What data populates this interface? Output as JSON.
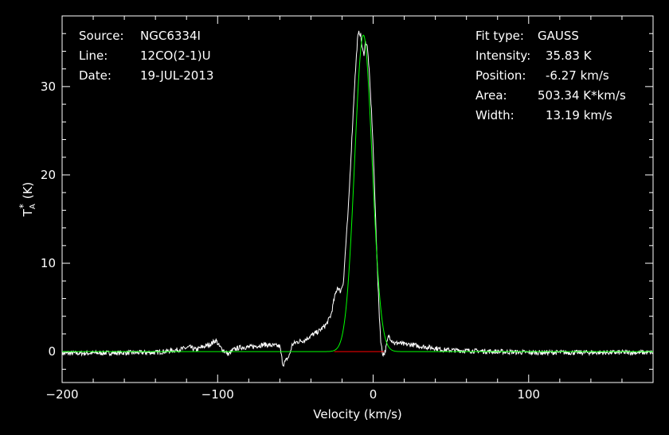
{
  "header_left": {
    "source_label": "Source:",
    "source_value": "NGC6334I",
    "line_label": "Line:",
    "line_value": "12CO(2-1)U",
    "date_label": "Date:",
    "date_value": "19-JUL-2013"
  },
  "fit": {
    "type_label": "Fit type:",
    "type_value": "GAUSS",
    "intensity_label": "Intensity:",
    "intensity_value": "35.83 K",
    "position_label": "Position:",
    "position_value": "-6.27 km/s",
    "area_label": "Area:",
    "area_value": "503.34 K*km/s",
    "width_label": "Width:",
    "width_value": "13.19 km/s"
  },
  "chart_data": {
    "type": "line",
    "xlabel": "Velocity (km/s)",
    "ylabel_main": "T",
    "ylabel_sub": "A",
    "ylabel_sup": "*",
    "ylabel_unit": "(K)",
    "xlim": [
      -200,
      180
    ],
    "ylim": [
      -3.5,
      38
    ],
    "xticks": [
      -200,
      -100,
      0,
      100
    ],
    "xtick_labels": [
      "-200",
      "-100",
      "0",
      "100"
    ],
    "yticks": [
      0,
      10,
      20,
      30
    ],
    "ytick_labels": [
      "0",
      "10",
      "20",
      "30"
    ],
    "series": [
      {
        "role": "spectrum",
        "color": "#ffffff",
        "x": [
          -200,
          -140,
          -125,
          -118,
          -114,
          -110,
          -105,
          -101,
          -99,
          -96,
          -93,
          -90,
          -87,
          -84,
          -80,
          -76,
          -70,
          -65,
          -60,
          -58,
          -56,
          -54,
          -52,
          -49,
          -44,
          -40,
          -35,
          -30,
          -27,
          -25,
          -23,
          -21,
          -19,
          -18,
          -16,
          -14,
          -12,
          -10,
          -9,
          -8,
          -7,
          -6,
          -5,
          -4,
          -3,
          -2,
          -1,
          0,
          1,
          2,
          3,
          4,
          5,
          6,
          7,
          8,
          9,
          10,
          12,
          14,
          16,
          20,
          25,
          30,
          40,
          45,
          60,
          80,
          100,
          130,
          180
        ],
        "values": [
          -0.2,
          -0.1,
          0.2,
          0.5,
          0.2,
          0.5,
          0.8,
          1.3,
          0.6,
          0.1,
          -0.3,
          0.2,
          0.4,
          0.5,
          0.5,
          0.6,
          0.8,
          0.7,
          0.6,
          -1.5,
          -1.0,
          -0.5,
          0.8,
          1.1,
          1.3,
          1.8,
          2.3,
          3.1,
          4.2,
          6.0,
          7.3,
          6.8,
          8.0,
          11.0,
          16.0,
          23.0,
          30.0,
          35.5,
          36.2,
          35.8,
          34.3,
          33.6,
          35.0,
          34.8,
          33.0,
          30.0,
          27.0,
          23.0,
          18.0,
          13.0,
          8.0,
          4.0,
          1.0,
          -0.2,
          -0.3,
          0.2,
          1.1,
          1.8,
          1.3,
          0.9,
          1.0,
          0.8,
          0.8,
          0.6,
          0.4,
          0.2,
          0.1,
          0.0,
          -0.1,
          -0.1,
          -0.1
        ]
      },
      {
        "role": "gaussian_fit",
        "color": "#00ff00",
        "amplitude": 35.83,
        "center": -6.27,
        "fwhm": 13.19
      },
      {
        "role": "baseline_window",
        "color": "#ff0000",
        "x": [
          -25,
          7
        ],
        "values": [
          0,
          0
        ]
      }
    ]
  }
}
